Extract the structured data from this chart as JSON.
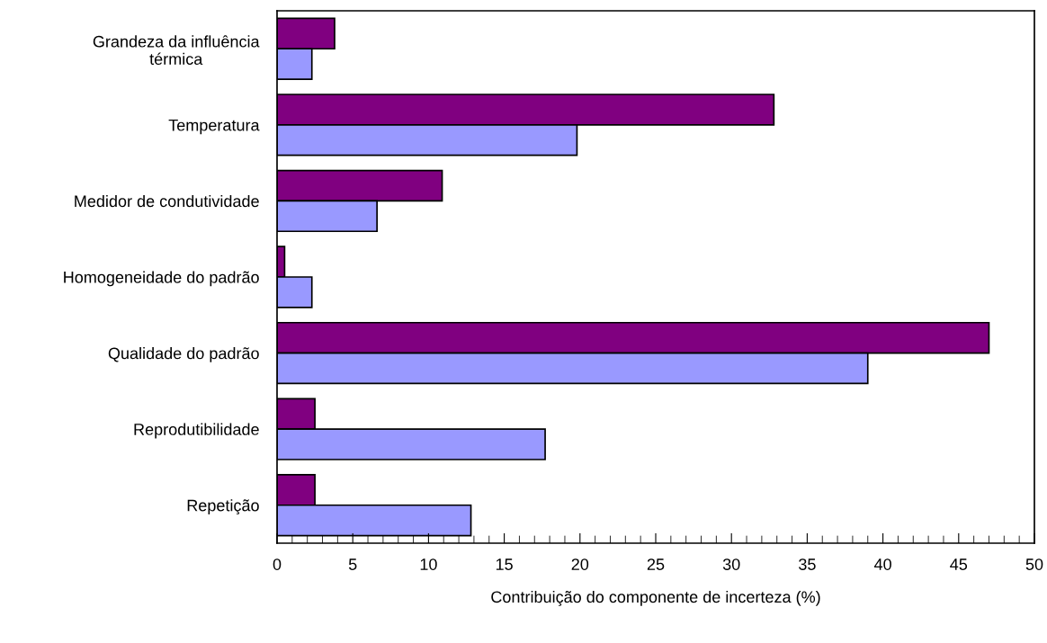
{
  "chart_data": {
    "type": "bar",
    "orientation": "horizontal",
    "xlabel": "Contribuição do componente de incerteza (%)",
    "categories": [
      "Grandeza da influência\ntérmica",
      "Temperatura",
      "Medidor de condutividade",
      "Homogeneidade do padrão",
      "Qualidade do padrão",
      "Reprodutibilidade",
      "Repetição"
    ],
    "series": [
      {
        "color": "#800080",
        "values": [
          3.8,
          32.8,
          10.9,
          0.5,
          47.0,
          2.5,
          2.5
        ]
      },
      {
        "color": "#9999ff",
        "values": [
          2.3,
          19.8,
          6.6,
          2.3,
          39.0,
          17.7,
          12.8
        ]
      }
    ],
    "xlim": [
      0,
      50
    ],
    "xticks": [
      0,
      5,
      10,
      15,
      20,
      25,
      30,
      35,
      40,
      45,
      50
    ],
    "grid": false,
    "legend": false
  }
}
